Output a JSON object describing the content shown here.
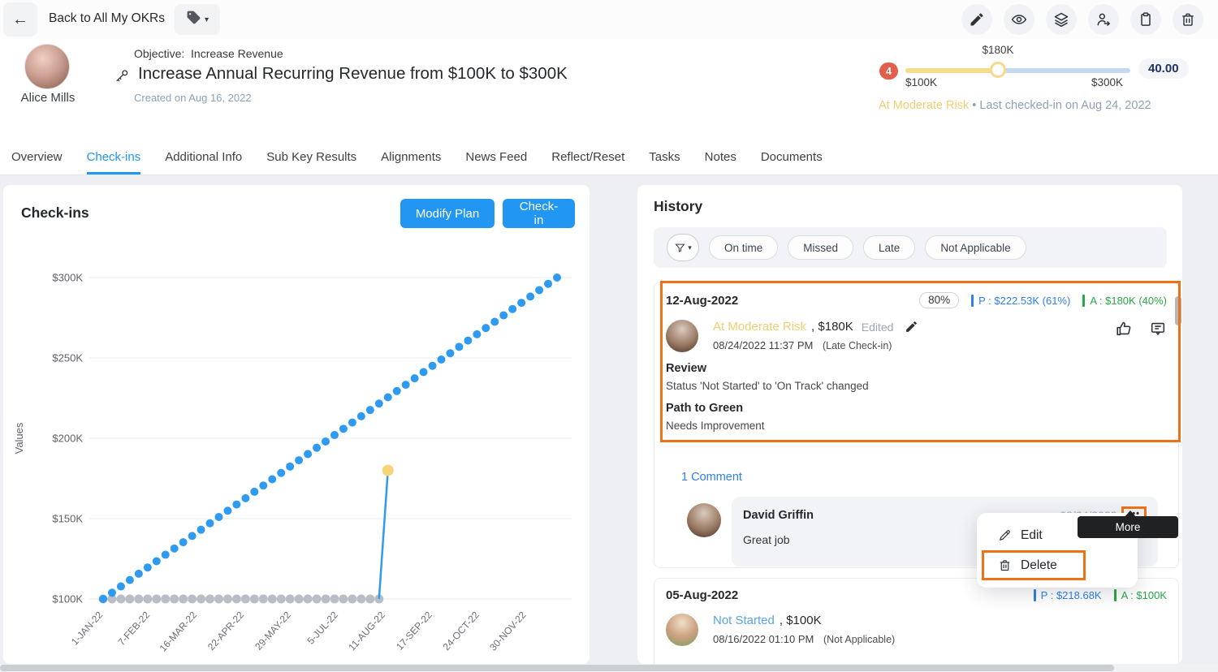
{
  "colors": {
    "accent_blue": "#2196f3",
    "annotation_orange": "#ee7118",
    "status_yellow": "#f2cd74",
    "status_light_blue": "#56a5e8",
    "planned_blue": "#2f80ed",
    "actual_green": "#27a844",
    "risk_badge_red": "#e2604a",
    "score_navy": "#1e3264"
  },
  "topbar": {
    "back_label": "Back to All My OKRs",
    "action_icons": [
      "pencil",
      "eye",
      "layers",
      "assign-user",
      "clipboard",
      "trash"
    ]
  },
  "header": {
    "owner_name": "Alice Mills",
    "objective_label": "Objective:",
    "objective_name": "Increase Revenue",
    "title": "Increase Annual Recurring Revenue from $100K to $300K",
    "created": "Created on Aug 16, 2022",
    "risk_count": "4",
    "slider": {
      "current_label": "$180K",
      "min_label": "$100K",
      "max_label": "$300K",
      "score": "40.00"
    },
    "status": "At Moderate Risk",
    "status_suffix": "• Last checked-in on Aug 24, 2022"
  },
  "tabs": {
    "items": [
      {
        "label": "Overview"
      },
      {
        "label": "Check-ins",
        "active": true
      },
      {
        "label": "Additional Info"
      },
      {
        "label": "Sub Key Results"
      },
      {
        "label": "Alignments"
      },
      {
        "label": "News Feed"
      },
      {
        "label": "Reflect/Reset"
      },
      {
        "label": "Tasks"
      },
      {
        "label": "Notes"
      },
      {
        "label": "Documents"
      }
    ]
  },
  "checkins_panel": {
    "title": "Check-ins",
    "modify_plan": "Modify Plan",
    "checkin": "Check-in"
  },
  "chart_data": {
    "type": "line",
    "ylabel": "Values",
    "ylim": [
      100,
      300
    ],
    "y_gridlines": [
      300,
      250,
      200,
      150,
      100
    ],
    "y_ticks": [
      "$300K",
      "$250K",
      "$200K",
      "$150K",
      "$100K"
    ],
    "x_tick_labels": [
      "1-JAN-22",
      "7-FEB-22",
      "16-MAR-22",
      "22-APR-22",
      "29-MAY-22",
      "5-JUL-22",
      "11-AUG-22",
      "17-SEP-22",
      "24-OCT-22",
      "30-NOV-22"
    ],
    "x_tick_positions": [
      0,
      5.29,
      10.57,
      15.86,
      21.14,
      26.43,
      31.71,
      37.0,
      42.29,
      47.57
    ],
    "x_unit": "weeks",
    "value_unit": "$K",
    "series": [
      {
        "name": "Planned",
        "color": "#2e9bf0",
        "values": [
          100.0,
          103.9,
          107.8,
          111.8,
          115.7,
          119.6,
          123.5,
          127.5,
          131.4,
          135.3,
          139.2,
          143.1,
          147.1,
          151.0,
          154.9,
          158.8,
          162.7,
          166.7,
          170.6,
          174.5,
          178.4,
          182.4,
          186.3,
          190.2,
          194.1,
          198.0,
          202.0,
          205.9,
          209.8,
          213.7,
          217.6,
          221.6,
          225.5,
          229.4,
          233.3,
          237.3,
          241.2,
          245.1,
          249.0,
          252.9,
          256.9,
          260.8,
          264.7,
          268.6,
          272.5,
          276.5,
          280.4,
          284.3,
          288.2,
          292.2,
          296.1,
          300.0
        ]
      },
      {
        "name": "Actual",
        "color": "#b9bec6",
        "connector_color": "#2e9bf0",
        "highlight_color": "#f8d478",
        "values": [
          100,
          100,
          100,
          100,
          100,
          100,
          100,
          100,
          100,
          100,
          100,
          100,
          100,
          100,
          100,
          100,
          100,
          100,
          100,
          100,
          100,
          100,
          100,
          100,
          100,
          100,
          100,
          100,
          100,
          100,
          100,
          100,
          180
        ]
      }
    ]
  },
  "history": {
    "title": "History",
    "filters": [
      "On time",
      "Missed",
      "Late",
      "Not Applicable"
    ],
    "entries": [
      {
        "date": "12-Aug-2022",
        "progress": "80%",
        "planned": "P : $222.53K (61%)",
        "actual": "A : $180K (40%)",
        "status": "At Moderate Risk",
        "value": ", $180K",
        "edited": "Edited",
        "timestamp": "08/24/2022 11:37 PM",
        "timing": "(Late Check-in)",
        "review_title": "Review",
        "review_text": "Status 'Not Started' to 'On Track' changed",
        "path_title": "Path to Green",
        "path_text": "Needs Improvement",
        "comments_link": "1 Comment",
        "comment": {
          "author": "David Griffin",
          "text": "Great job",
          "date": "08/24/2022",
          "more": "•••"
        }
      },
      {
        "date": "05-Aug-2022",
        "planned": "P : $218.68K",
        "actual": "A : $100K",
        "status": "Not Started",
        "value": ", $100K",
        "timestamp": "08/16/2022 01:10 PM",
        "timing": "(Not Applicable)"
      }
    ],
    "context_menu": {
      "edit": "Edit",
      "delete": "Delete"
    },
    "tooltip": "More"
  }
}
